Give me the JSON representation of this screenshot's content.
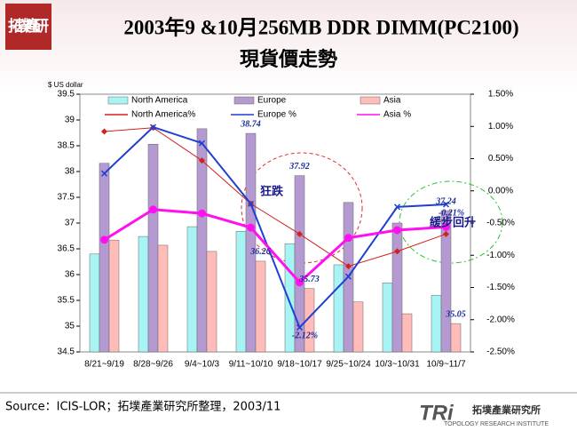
{
  "chart_data": {
    "type": "bar_line",
    "title": "2003年9 &10月256MB DDR DIMM(PC2100)",
    "subtitle": "現貨價走勢",
    "y_label": "$ US dollar",
    "source": "Source：ICIS-LOR；拓墣產業研究所整理，2003/11",
    "annotations": [
      "狂跌",
      "緩步回升"
    ],
    "categories": [
      "8/21~9/19",
      "8/28~9/26",
      "9/4~10/3",
      "9/11~10/10",
      "9/18~10/17",
      "9/25~10/24",
      "10/3~10/31",
      "10/9~11/7"
    ],
    "ylim": [
      34.5,
      39.5
    ],
    "yticks": [
      34.5,
      35,
      35.5,
      36,
      36.5,
      37,
      37.5,
      38,
      38.5,
      39,
      39.5
    ],
    "y2lim": [
      -2.5,
      1.5
    ],
    "y2ticks": [
      {
        "value": -2.5,
        "label": "-2.50%"
      },
      {
        "value": -2,
        "label": "-2.00%"
      },
      {
        "value": -1.5,
        "label": "-1.50%"
      },
      {
        "value": -1,
        "label": "-1.00%"
      },
      {
        "value": -0.5,
        "label": "-0.50%"
      },
      {
        "value": 0,
        "label": "0.00%"
      },
      {
        "value": 0.5,
        "label": "0.50%"
      },
      {
        "value": 1,
        "label": "1.00%"
      },
      {
        "value": 1.5,
        "label": "1.50%"
      }
    ],
    "series": [
      {
        "name": "North America",
        "kind": "bar",
        "color": "#a8f4f4",
        "values": [
          36.4,
          36.74,
          36.93,
          36.84,
          36.6,
          36.19,
          35.84,
          35.6
        ]
      },
      {
        "name": "Europe",
        "kind": "bar",
        "color": "#b49ad0",
        "values": [
          38.16,
          38.53,
          38.83,
          38.74,
          37.92,
          37.4,
          37.0,
          37.24
        ],
        "value_labels": [
          null,
          null,
          null,
          "38.74",
          "37.92",
          null,
          null,
          "37.24"
        ]
      },
      {
        "name": "Asia",
        "kind": "bar",
        "color": "#ffbcb8",
        "values": [
          36.67,
          36.57,
          36.45,
          36.26,
          35.73,
          35.47,
          35.24,
          35.05
        ],
        "value_labels": [
          null,
          null,
          null,
          "36.26",
          "35.73",
          null,
          null,
          "35.05"
        ]
      },
      {
        "name": "North America%",
        "kind": "line",
        "axis": "y2",
        "marker": "diamond",
        "color": "#d42020",
        "values": [
          0.92,
          0.98,
          0.47,
          -0.2,
          -0.67,
          -1.17,
          -0.94,
          -0.67
        ]
      },
      {
        "name": "Europe %",
        "kind": "line",
        "axis": "y2",
        "marker": "x",
        "color": "#1f3fd0",
        "values": [
          0.27,
          0.99,
          0.74,
          -0.2,
          -2.12,
          -1.33,
          -0.25,
          -0.21
        ],
        "value_labels": [
          null,
          null,
          null,
          null,
          "-2.12%",
          null,
          null,
          "-0.21%"
        ]
      },
      {
        "name": "Asia %",
        "kind": "line",
        "axis": "y2",
        "marker": "circle",
        "color": "#ff10f0",
        "values": [
          -0.76,
          -0.29,
          -0.35,
          -0.57,
          -1.42,
          -0.73,
          -0.61,
          -0.56
        ]
      }
    ]
  },
  "logos": {
    "brand_mark": "拓墣產研",
    "tri": "TRi",
    "institute": "拓墣產業研究所",
    "institute_en": "TOPOLOGY RESEARCH INSTITUTE"
  }
}
